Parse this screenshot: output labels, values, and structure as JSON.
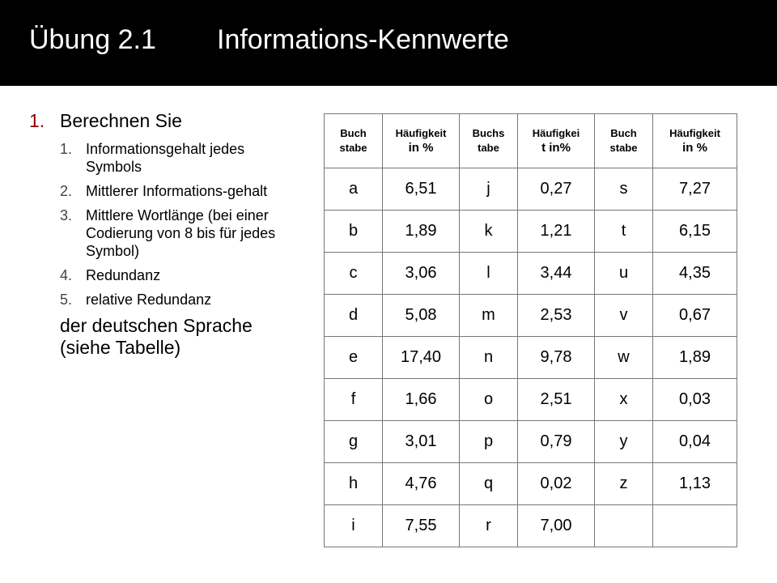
{
  "title": {
    "number": "Übung 2.1",
    "text": "Informations-Kennwerte"
  },
  "task": {
    "main_number": "1.",
    "main_label": "Berechnen Sie",
    "items": [
      {
        "num": "1.",
        "text": "Informationsgehalt jedes Symbols"
      },
      {
        "num": "2.",
        "text": "Mittlerer Informations-gehalt"
      },
      {
        "num": "3.",
        "text": "Mittlere Wortlänge (bei einer Codierung von 8 bis für jedes Symbol)"
      },
      {
        "num": "4.",
        "text": "Redundanz"
      },
      {
        "num": "5.",
        "text": "relative Redundanz"
      }
    ],
    "closing": "der deutschen Sprache (siehe Tabelle)"
  },
  "table": {
    "headers": [
      {
        "line1": "Buch",
        "line2": "stabe"
      },
      {
        "line1": "Häufigkeit",
        "line2": "in %"
      },
      {
        "line1": "Buchs",
        "line2": "tabe"
      },
      {
        "line1": "Häufigkei",
        "line2": "t in%"
      },
      {
        "line1": "Buch",
        "line2": "stabe"
      },
      {
        "line1": "Häufigkeit",
        "line2": "in %"
      }
    ],
    "rows": [
      [
        "a",
        "6,51",
        "j",
        "0,27",
        "s",
        "7,27"
      ],
      [
        "b",
        "1,89",
        "k",
        "1,21",
        "t",
        "6,15"
      ],
      [
        "c",
        "3,06",
        "l",
        "3,44",
        "u",
        "4,35"
      ],
      [
        "d",
        "5,08",
        "m",
        "2,53",
        "v",
        "0,67"
      ],
      [
        "e",
        "17,40",
        "n",
        "9,78",
        "w",
        "1,89"
      ],
      [
        "f",
        "1,66",
        "o",
        "2,51",
        "x",
        "0,03"
      ],
      [
        "g",
        "3,01",
        "p",
        "0,79",
        "y",
        "0,04"
      ],
      [
        "h",
        "4,76",
        "q",
        "0,02",
        "z",
        "1,13"
      ],
      [
        "i",
        "7,55",
        "r",
        "7,00",
        "",
        ""
      ]
    ]
  },
  "colors": {
    "header_bg": "#000000",
    "list_number": "#8b0000",
    "grid": "#777777"
  }
}
